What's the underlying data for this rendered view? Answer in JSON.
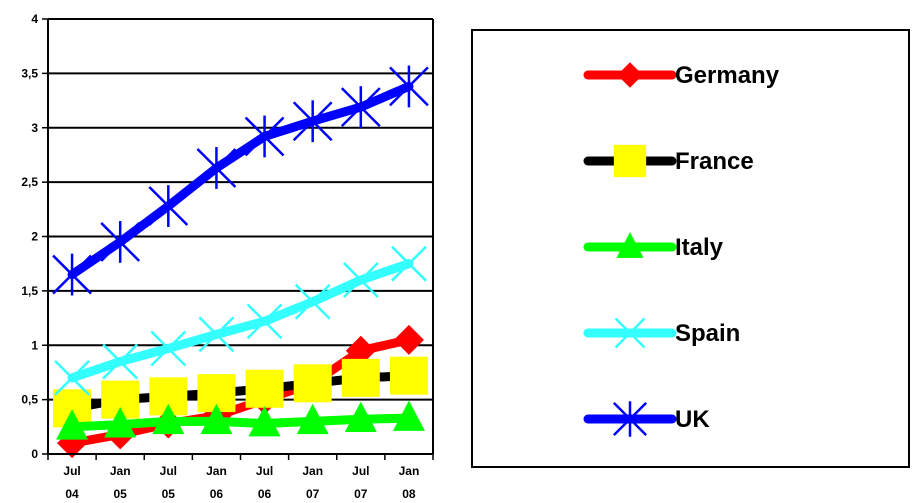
{
  "chart_data": {
    "type": "line",
    "title": "",
    "xlabel": "",
    "ylabel": "",
    "categories": [
      "Jul 04",
      "Jan 05",
      "Jul 05",
      "Jan 06",
      "Jul 06",
      "Jan 07",
      "Jul 07",
      "Jan 08"
    ],
    "category_lines": [
      [
        "Jul",
        "04"
      ],
      [
        "Jan",
        "05"
      ],
      [
        "Jul",
        "05"
      ],
      [
        "Jan",
        "06"
      ],
      [
        "Jul",
        "06"
      ],
      [
        "Jan",
        "07"
      ],
      [
        "Jul",
        "07"
      ],
      [
        "Jan",
        "08"
      ]
    ],
    "ylim": [
      0,
      4
    ],
    "yticks": [
      0,
      0.5,
      1,
      1.5,
      2,
      2.5,
      3,
      3.5,
      4
    ],
    "ytick_labels": [
      "0",
      "0,5",
      "1",
      "1,5",
      "2",
      "2,5",
      "3",
      "3,5",
      "4"
    ],
    "grid": "horizontal",
    "legend_position": "right",
    "series": [
      {
        "name": "Germany",
        "color": "#ff0000",
        "marker": "diamond",
        "values": [
          0.1,
          0.18,
          0.28,
          0.35,
          0.5,
          0.65,
          0.95,
          1.05
        ]
      },
      {
        "name": "France",
        "color": "#000000",
        "marker_color": "#ffff00",
        "marker": "square",
        "values": [
          0.42,
          0.5,
          0.53,
          0.56,
          0.6,
          0.65,
          0.7,
          0.72
        ]
      },
      {
        "name": "Italy",
        "color": "#00ff00",
        "marker": "triangle",
        "values": [
          0.25,
          0.27,
          0.3,
          0.3,
          0.28,
          0.3,
          0.32,
          0.33
        ]
      },
      {
        "name": "Spain",
        "color": "#33ffff",
        "marker": "x",
        "values": [
          0.7,
          0.85,
          0.97,
          1.1,
          1.22,
          1.4,
          1.6,
          1.75
        ]
      },
      {
        "name": "UK",
        "color": "#0000ff",
        "marker": "star",
        "values": [
          1.65,
          1.95,
          2.28,
          2.63,
          2.92,
          3.06,
          3.19,
          3.38
        ]
      }
    ]
  }
}
